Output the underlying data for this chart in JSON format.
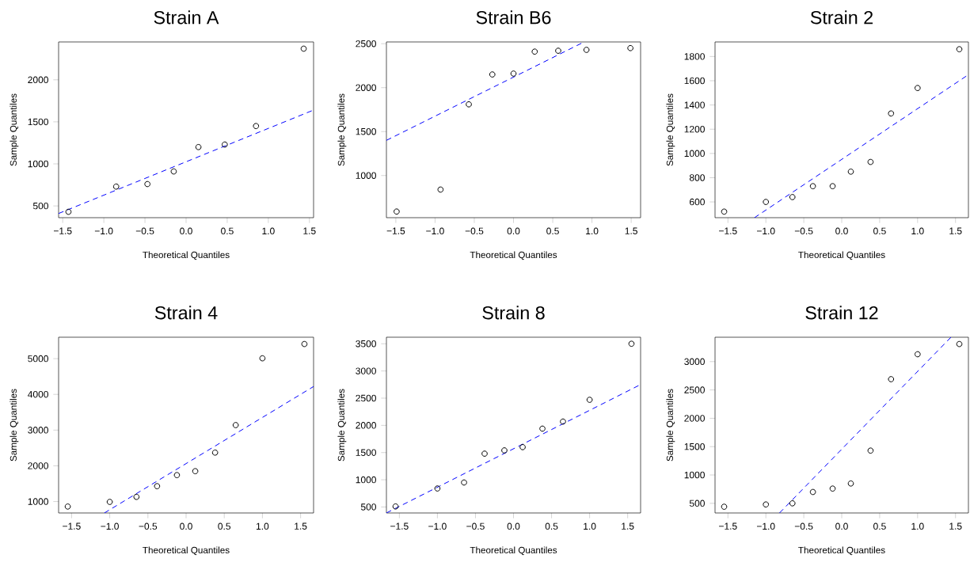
{
  "chart_data": [
    {
      "type": "scatter",
      "title": "Strain A",
      "xlabel": "Theoretical Quantiles",
      "ylabel": "Sample Quantiles",
      "xlim": [
        -1.55,
        1.55
      ],
      "ylim": [
        360,
        2450
      ],
      "marker": "circle",
      "xticks": [
        {
          "value": -1.5,
          "label": "−1.5"
        },
        {
          "value": -1,
          "label": "−1.0"
        },
        {
          "value": -0.5,
          "label": "−0.5"
        },
        {
          "value": 0,
          "label": "0.0"
        },
        {
          "value": 0.5,
          "label": "0.5"
        },
        {
          "value": 1,
          "label": "1.0"
        },
        {
          "value": 1.5,
          "label": "1.5"
        }
      ],
      "yticks": [
        500,
        1000,
        1500,
        2000
      ],
      "series": [
        {
          "color": "#000000",
          "x": [
            -1.43,
            -0.85,
            -0.47,
            -0.15,
            0.15,
            0.47,
            0.85,
            1.43
          ],
          "values": [
            430,
            730,
            760,
            910,
            1200,
            1230,
            1450,
            2370
          ]
        },
        {
          "type": "line",
          "color": "#0000ff",
          "line_style": "dashed",
          "marker": "none",
          "x": [
            -1.55,
            1.55
          ],
          "values": [
            410,
            1640
          ]
        }
      ]
    },
    {
      "type": "scatter",
      "title": "Strain B6",
      "xlabel": "Theoretical Quantiles",
      "ylabel": "Sample Quantiles",
      "xlim": [
        -1.62,
        1.62
      ],
      "ylim": [
        520,
        2520
      ],
      "marker": "circle",
      "xticks": [
        {
          "value": -1.5,
          "label": "−1.5"
        },
        {
          "value": -1,
          "label": "−1.0"
        },
        {
          "value": -0.5,
          "label": "−0.5"
        },
        {
          "value": 0,
          "label": "0.0"
        },
        {
          "value": 0.5,
          "label": "0.5"
        },
        {
          "value": 1,
          "label": "1.0"
        },
        {
          "value": 1.5,
          "label": "1.5"
        }
      ],
      "yticks": [
        1000,
        1500,
        2000,
        2500
      ],
      "series": [
        {
          "color": "#000000",
          "x": [
            -1.49,
            -0.93,
            -0.57,
            -0.27,
            0,
            0.27,
            0.57,
            0.93,
            1.49
          ],
          "values": [
            590,
            840,
            1810,
            2150,
            2160,
            2410,
            2420,
            2430,
            2450
          ]
        },
        {
          "type": "line",
          "color": "#0000ff",
          "line_style": "dashed",
          "marker": "none",
          "x": [
            -1.62,
            0.9
          ],
          "values": [
            1400,
            2520
          ]
        }
      ]
    },
    {
      "type": "scatter",
      "title": "Strain 2",
      "xlabel": "Theoretical Quantiles",
      "ylabel": "Sample Quantiles",
      "xlim": [
        -1.67,
        1.67
      ],
      "ylim": [
        470,
        1920
      ],
      "marker": "circle",
      "xticks": [
        {
          "value": -1.5,
          "label": "−1.5"
        },
        {
          "value": -1,
          "label": "−1.0"
        },
        {
          "value": -0.5,
          "label": "−0.5"
        },
        {
          "value": 0,
          "label": "0.0"
        },
        {
          "value": 0.5,
          "label": "0.5"
        },
        {
          "value": 1,
          "label": "1.0"
        },
        {
          "value": 1.5,
          "label": "1.5"
        }
      ],
      "yticks": [
        600,
        800,
        1000,
        1200,
        1400,
        1600,
        1800
      ],
      "series": [
        {
          "color": "#000000",
          "x": [
            -1.55,
            -1.0,
            -0.65,
            -0.38,
            -0.12,
            0.12,
            0.38,
            0.65,
            1.0,
            1.55
          ],
          "values": [
            520,
            600,
            640,
            730,
            730,
            850,
            930,
            1330,
            1540,
            1860
          ]
        },
        {
          "type": "line",
          "color": "#0000ff",
          "line_style": "dashed",
          "marker": "none",
          "x": [
            -1.15,
            1.67
          ],
          "values": [
            470,
            1650
          ]
        }
      ]
    },
    {
      "type": "scatter",
      "title": "Strain 4",
      "xlabel": "Theoretical Quantiles",
      "ylabel": "Sample Quantiles",
      "xlim": [
        -1.67,
        1.67
      ],
      "ylim": [
        680,
        5600
      ],
      "marker": "circle",
      "xticks": [
        {
          "value": -1.5,
          "label": "−1.5"
        },
        {
          "value": -1,
          "label": "−1.0"
        },
        {
          "value": -0.5,
          "label": "−0.5"
        },
        {
          "value": 0,
          "label": "0.0"
        },
        {
          "value": 0.5,
          "label": "0.5"
        },
        {
          "value": 1,
          "label": "1.0"
        },
        {
          "value": 1.5,
          "label": "1.5"
        }
      ],
      "yticks": [
        1000,
        2000,
        3000,
        4000,
        5000
      ],
      "series": [
        {
          "color": "#000000",
          "x": [
            -1.55,
            -1.0,
            -0.65,
            -0.38,
            -0.12,
            0.12,
            0.38,
            0.65,
            1.0,
            1.55
          ],
          "values": [
            860,
            990,
            1130,
            1430,
            1740,
            1850,
            2370,
            3140,
            5010,
            5410
          ]
        },
        {
          "type": "line",
          "color": "#0000ff",
          "line_style": "dashed",
          "marker": "none",
          "x": [
            -1.07,
            1.67
          ],
          "values": [
            680,
            4220
          ]
        }
      ]
    },
    {
      "type": "scatter",
      "title": "Strain 8",
      "xlabel": "Theoretical Quantiles",
      "ylabel": "Sample Quantiles",
      "xlim": [
        -1.67,
        1.67
      ],
      "ylim": [
        390,
        3620
      ],
      "marker": "circle",
      "xticks": [
        {
          "value": -1.5,
          "label": "−1.5"
        },
        {
          "value": -1,
          "label": "−1.0"
        },
        {
          "value": -0.5,
          "label": "−0.5"
        },
        {
          "value": 0,
          "label": "0.0"
        },
        {
          "value": 0.5,
          "label": "0.5"
        },
        {
          "value": 1,
          "label": "1.0"
        },
        {
          "value": 1.5,
          "label": "1.5"
        }
      ],
      "yticks": [
        500,
        1000,
        1500,
        2000,
        2500,
        3000,
        3500
      ],
      "series": [
        {
          "color": "#000000",
          "x": [
            -1.55,
            -1.0,
            -0.65,
            -0.38,
            -0.12,
            0.12,
            0.38,
            0.65,
            1.0,
            1.55
          ],
          "values": [
            510,
            840,
            950,
            1480,
            1540,
            1600,
            1940,
            2070,
            2470,
            3500
          ]
        },
        {
          "type": "line",
          "color": "#0000ff",
          "line_style": "dashed",
          "marker": "none",
          "x": [
            -1.67,
            1.67
          ],
          "values": [
            390,
            2750
          ]
        }
      ]
    },
    {
      "type": "scatter",
      "title": "Strain 12",
      "xlabel": "Theoretical Quantiles",
      "ylabel": "Sample Quantiles",
      "xlim": [
        -1.67,
        1.67
      ],
      "ylim": [
        330,
        3430
      ],
      "marker": "circle",
      "xticks": [
        {
          "value": -1.5,
          "label": "−1.5"
        },
        {
          "value": -1,
          "label": "−1.0"
        },
        {
          "value": -0.5,
          "label": "−0.5"
        },
        {
          "value": 0,
          "label": "0.0"
        },
        {
          "value": 0.5,
          "label": "0.5"
        },
        {
          "value": 1,
          "label": "1.0"
        },
        {
          "value": 1.5,
          "label": "1.5"
        }
      ],
      "yticks": [
        500,
        1000,
        1500,
        2000,
        2500,
        3000
      ],
      "series": [
        {
          "color": "#000000",
          "x": [
            -1.55,
            -1.0,
            -0.65,
            -0.38,
            -0.12,
            0.12,
            0.38,
            0.65,
            1.0,
            1.55
          ],
          "values": [
            440,
            480,
            500,
            700,
            760,
            850,
            1430,
            2690,
            3130,
            3310
          ]
        },
        {
          "type": "line",
          "color": "#0000ff",
          "line_style": "dashed",
          "marker": "none",
          "x": [
            -0.82,
            1.44
          ],
          "values": [
            330,
            3430
          ]
        }
      ]
    }
  ]
}
